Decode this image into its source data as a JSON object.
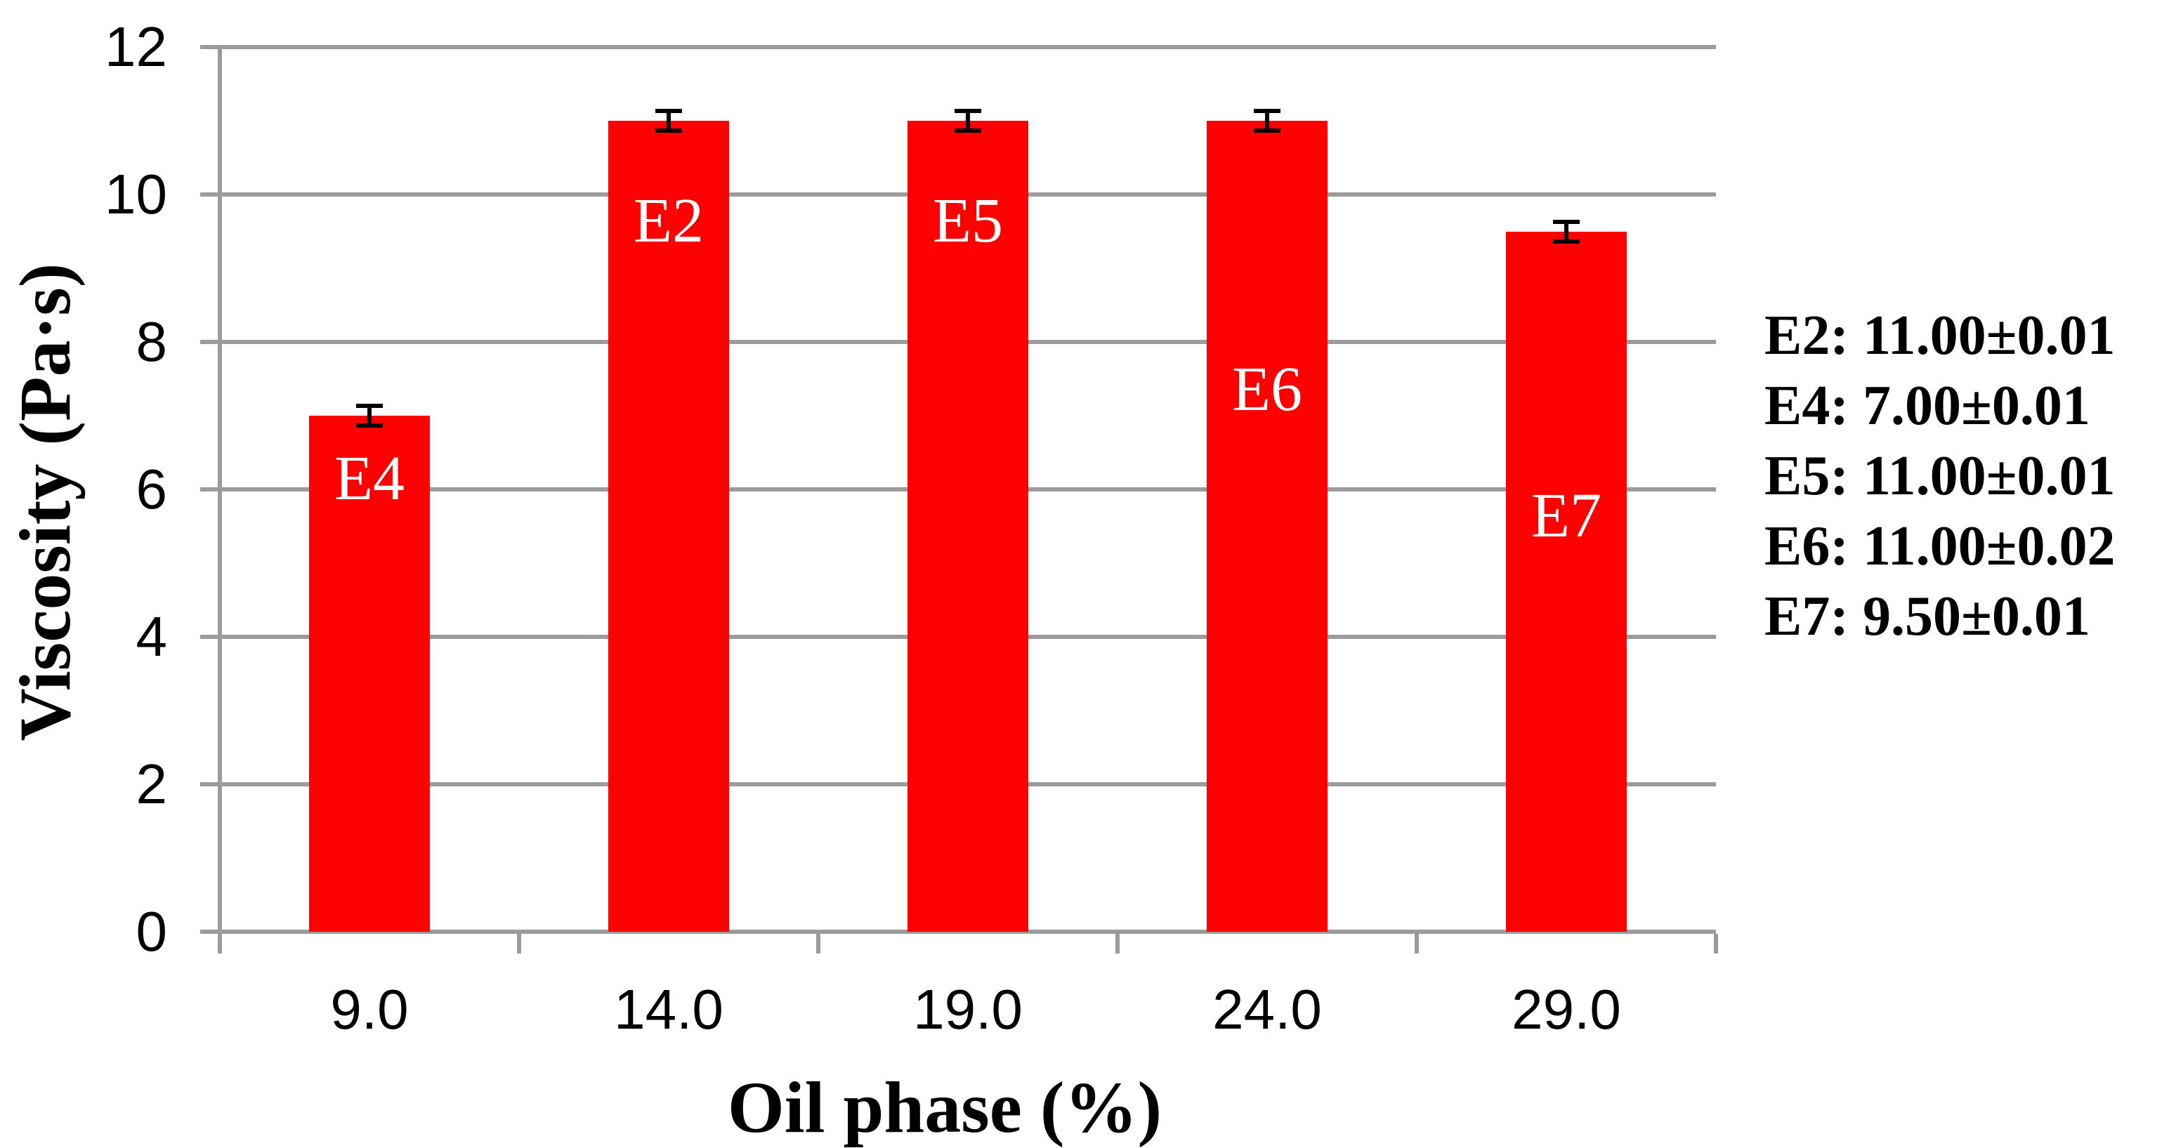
{
  "figure": {
    "background": "#FFFFFF"
  },
  "chart_data": {
    "type": "bar",
    "title": "",
    "xlabel": "Oil phase (%)",
    "ylabel": "Viscosity (Pa·s)",
    "ylim": [
      0,
      12
    ],
    "yticks": [
      0,
      2,
      4,
      6,
      8,
      10,
      12
    ],
    "grid": "horizontal-gridlines",
    "legend_position": "right-side-annotation-list",
    "categories": [
      "9.0",
      "14.0",
      "19.0",
      "24.0",
      "29.0"
    ],
    "series": [
      {
        "name": "Viscosity (Pa·s)",
        "values": [
          7.0,
          11.0,
          11.0,
          11.0,
          9.5
        ]
      }
    ],
    "bar_labels": [
      "E4",
      "E2",
      "E5",
      "E6",
      "E7"
    ],
    "bar_label_y_values": [
      6.14,
      9.64,
      9.64,
      7.35,
      5.64
    ],
    "errors": [
      0.01,
      0.01,
      0.01,
      0.02,
      0.01
    ],
    "bar_color": "#FF0000",
    "bar_label_color": "#FFFFFF",
    "grid_color": "#9B9B9B",
    "error_bar_color": "#000000",
    "annotations": [
      "E2: 11.00±0.01",
      "E4: 7.00±0.01",
      "E5: 11.00±0.01",
      "E6: 11.00±0.02",
      "E7: 9.50±0.01"
    ]
  }
}
